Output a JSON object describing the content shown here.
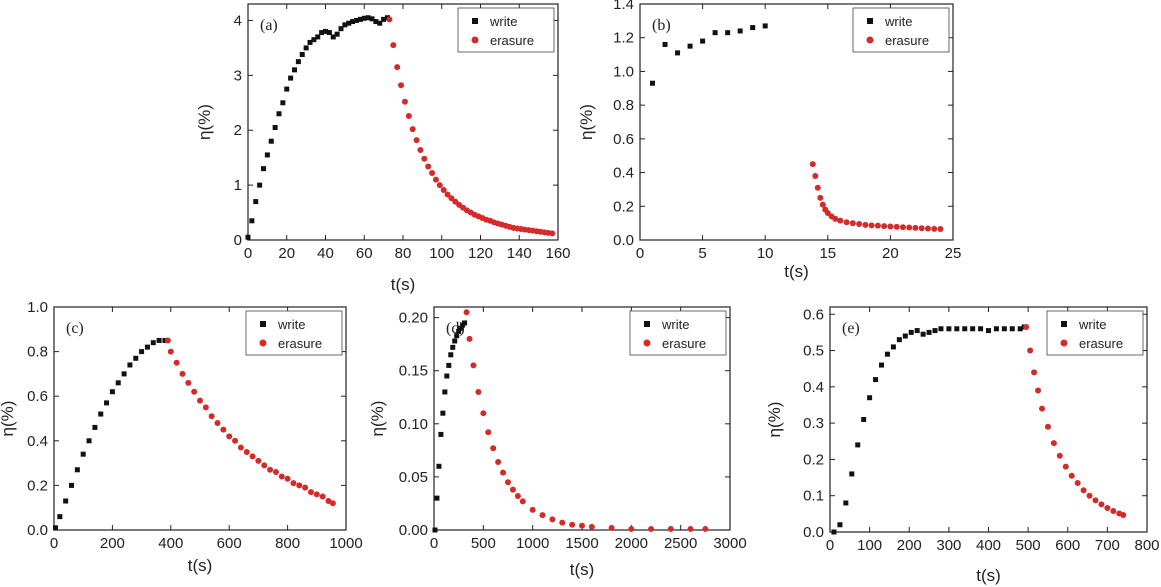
{
  "colors": {
    "write": "#111111",
    "erasure": "#d42a2a",
    "axis": "#222222"
  },
  "chart_data": [
    {
      "type": "scatter",
      "panel": "(a)",
      "xlabel": "t(s)",
      "ylabel": "η(%)",
      "xlim": [
        0,
        160
      ],
      "ylim": [
        0,
        4.3
      ],
      "xticks": [
        0,
        20,
        40,
        60,
        80,
        100,
        120,
        140,
        160
      ],
      "yticks": [
        0,
        1,
        2,
        3,
        4
      ],
      "legend": {
        "position": "top-right",
        "entries": [
          "write",
          "erasure"
        ]
      },
      "series": [
        {
          "name": "write",
          "marker": "square",
          "x": [
            0,
            2,
            4,
            6,
            8,
            10,
            12,
            14,
            16,
            18,
            20,
            22,
            24,
            26,
            28,
            30,
            32,
            34,
            36,
            38,
            40,
            42,
            44,
            46,
            48,
            50,
            52,
            54,
            56,
            58,
            60,
            62,
            64,
            66,
            68,
            70,
            72
          ],
          "y": [
            0.05,
            0.35,
            0.7,
            1.0,
            1.3,
            1.55,
            1.8,
            2.05,
            2.3,
            2.5,
            2.75,
            2.95,
            3.1,
            3.25,
            3.38,
            3.5,
            3.6,
            3.65,
            3.7,
            3.78,
            3.8,
            3.78,
            3.7,
            3.75,
            3.85,
            3.92,
            3.95,
            3.98,
            4.0,
            4.02,
            4.04,
            4.05,
            4.03,
            3.98,
            3.95,
            4.02,
            4.05
          ]
        },
        {
          "name": "erasure",
          "marker": "circle",
          "x": [
            73,
            75,
            77,
            79,
            81,
            83,
            85,
            87,
            89,
            91,
            93,
            95,
            97,
            99,
            101,
            103,
            105,
            107,
            109,
            111,
            113,
            115,
            117,
            119,
            121,
            123,
            125,
            127,
            129,
            131,
            133,
            135,
            137,
            139,
            141,
            143,
            145,
            147,
            149,
            151,
            153,
            155,
            157
          ],
          "y": [
            4.02,
            3.55,
            3.15,
            2.82,
            2.52,
            2.26,
            2.02,
            1.82,
            1.64,
            1.48,
            1.34,
            1.22,
            1.1,
            1.0,
            0.91,
            0.83,
            0.76,
            0.7,
            0.64,
            0.59,
            0.54,
            0.5,
            0.46,
            0.43,
            0.4,
            0.37,
            0.35,
            0.32,
            0.3,
            0.28,
            0.26,
            0.24,
            0.22,
            0.21,
            0.2,
            0.19,
            0.18,
            0.17,
            0.16,
            0.15,
            0.14,
            0.13,
            0.12
          ]
        }
      ]
    },
    {
      "type": "scatter",
      "panel": "(b)",
      "xlabel": "t(s)",
      "ylabel": "η(%)",
      "xlim": [
        0,
        25
      ],
      "ylim": [
        0,
        1.4
      ],
      "xticks": [
        0,
        5,
        10,
        15,
        20,
        25
      ],
      "yticks": [
        0.0,
        0.2,
        0.4,
        0.6,
        0.8,
        1.0,
        1.2,
        1.4
      ],
      "legend": {
        "position": "top-right",
        "entries": [
          "write",
          "erasure"
        ]
      },
      "series": [
        {
          "name": "write",
          "marker": "square",
          "x": [
            1,
            2,
            3,
            4,
            5,
            6,
            7,
            8,
            9,
            10
          ],
          "y": [
            0.93,
            1.16,
            1.11,
            1.15,
            1.18,
            1.23,
            1.23,
            1.24,
            1.26,
            1.27
          ]
        },
        {
          "name": "erasure",
          "marker": "circle",
          "x": [
            13.8,
            14.0,
            14.2,
            14.4,
            14.6,
            14.8,
            15.0,
            15.3,
            15.6,
            16.0,
            16.5,
            17.0,
            17.5,
            18.0,
            18.5,
            19.0,
            19.5,
            20.0,
            20.5,
            21.0,
            21.5,
            22.0,
            22.5,
            23.0,
            23.5,
            24.0
          ],
          "y": [
            0.45,
            0.38,
            0.31,
            0.25,
            0.21,
            0.18,
            0.16,
            0.14,
            0.125,
            0.115,
            0.105,
            0.1,
            0.095,
            0.09,
            0.087,
            0.085,
            0.082,
            0.08,
            0.078,
            0.076,
            0.074,
            0.072,
            0.07,
            0.068,
            0.066,
            0.065
          ]
        }
      ]
    },
    {
      "type": "scatter",
      "panel": "(c)",
      "xlabel": "t(s)",
      "ylabel": "η(%)",
      "xlim": [
        0,
        1000
      ],
      "ylim": [
        0,
        1.0
      ],
      "xticks": [
        0,
        200,
        400,
        600,
        800,
        1000
      ],
      "yticks": [
        0.0,
        0.2,
        0.4,
        0.6,
        0.8,
        1.0
      ],
      "legend": {
        "position": "top-right",
        "entries": [
          "write",
          "erasure"
        ]
      },
      "series": [
        {
          "name": "write",
          "marker": "square",
          "x": [
            5,
            20,
            40,
            60,
            80,
            100,
            120,
            140,
            160,
            180,
            200,
            220,
            240,
            260,
            280,
            300,
            320,
            340,
            360,
            380
          ],
          "y": [
            0.01,
            0.06,
            0.13,
            0.2,
            0.27,
            0.34,
            0.4,
            0.46,
            0.52,
            0.57,
            0.62,
            0.66,
            0.7,
            0.74,
            0.77,
            0.8,
            0.82,
            0.84,
            0.85,
            0.85
          ]
        },
        {
          "name": "erasure",
          "marker": "circle",
          "x": [
            390,
            400,
            420,
            440,
            460,
            480,
            500,
            520,
            540,
            560,
            580,
            600,
            620,
            640,
            660,
            680,
            700,
            720,
            740,
            760,
            780,
            800,
            820,
            840,
            860,
            880,
            900,
            920,
            940,
            955
          ],
          "y": [
            0.85,
            0.8,
            0.75,
            0.7,
            0.66,
            0.62,
            0.58,
            0.55,
            0.51,
            0.48,
            0.45,
            0.42,
            0.4,
            0.37,
            0.35,
            0.33,
            0.31,
            0.29,
            0.27,
            0.26,
            0.24,
            0.23,
            0.21,
            0.2,
            0.19,
            0.17,
            0.16,
            0.15,
            0.13,
            0.12
          ]
        }
      ]
    },
    {
      "type": "scatter",
      "panel": "(d)",
      "xlabel": "t(s)",
      "ylabel": "η(%)",
      "xlim": [
        0,
        3000
      ],
      "ylim": [
        0,
        0.21
      ],
      "xticks": [
        0,
        500,
        1000,
        1500,
        2000,
        2500,
        3000
      ],
      "yticks": [
        0.0,
        0.05,
        0.1,
        0.15,
        0.2
      ],
      "ytick_labels": [
        "0.00",
        "0.05",
        "0.10",
        "0.15",
        "0.20"
      ],
      "legend": {
        "position": "top-right",
        "entries": [
          "write",
          "erasure"
        ]
      },
      "series": [
        {
          "name": "write",
          "marker": "square",
          "x": [
            10,
            30,
            50,
            70,
            90,
            110,
            130,
            150,
            170,
            190,
            210,
            230,
            250,
            270,
            290,
            310
          ],
          "y": [
            0.0,
            0.03,
            0.06,
            0.09,
            0.11,
            0.13,
            0.145,
            0.155,
            0.165,
            0.172,
            0.178,
            0.183,
            0.187,
            0.19,
            0.193,
            0.195
          ]
        },
        {
          "name": "erasure",
          "marker": "circle",
          "x": [
            330,
            360,
            400,
            450,
            500,
            550,
            600,
            650,
            700,
            750,
            800,
            850,
            900,
            1000,
            1100,
            1200,
            1300,
            1400,
            1500,
            1600,
            1800,
            2000,
            2200,
            2400,
            2600,
            2750
          ],
          "y": [
            0.205,
            0.18,
            0.155,
            0.13,
            0.11,
            0.092,
            0.077,
            0.064,
            0.054,
            0.045,
            0.038,
            0.032,
            0.027,
            0.019,
            0.014,
            0.01,
            0.007,
            0.005,
            0.004,
            0.003,
            0.002,
            0.001,
            0.001,
            0.001,
            0.001,
            0.001
          ]
        }
      ]
    },
    {
      "type": "scatter",
      "panel": "(e)",
      "xlabel": "t(s)",
      "ylabel": "η(%)",
      "xlim": [
        0,
        800
      ],
      "ylim": [
        0,
        0.62
      ],
      "xticks": [
        0,
        100,
        200,
        300,
        400,
        500,
        600,
        700,
        800
      ],
      "yticks": [
        0.0,
        0.1,
        0.2,
        0.3,
        0.4,
        0.5,
        0.6
      ],
      "legend": {
        "position": "top-right",
        "entries": [
          "write",
          "erasure"
        ]
      },
      "series": [
        {
          "name": "write",
          "marker": "square",
          "x": [
            10,
            25,
            40,
            55,
            70,
            85,
            100,
            115,
            130,
            145,
            160,
            175,
            190,
            205,
            220,
            235,
            250,
            265,
            280,
            300,
            320,
            340,
            360,
            380,
            400,
            420,
            440,
            460,
            480,
            490
          ],
          "y": [
            0.0,
            0.02,
            0.08,
            0.16,
            0.24,
            0.31,
            0.37,
            0.42,
            0.46,
            0.49,
            0.51,
            0.53,
            0.54,
            0.55,
            0.555,
            0.545,
            0.55,
            0.555,
            0.56,
            0.56,
            0.56,
            0.56,
            0.56,
            0.56,
            0.555,
            0.56,
            0.56,
            0.56,
            0.56,
            0.565
          ]
        },
        {
          "name": "erasure",
          "marker": "circle",
          "x": [
            495,
            505,
            515,
            525,
            535,
            550,
            565,
            580,
            595,
            610,
            625,
            640,
            655,
            670,
            685,
            700,
            715,
            730,
            740
          ],
          "y": [
            0.565,
            0.5,
            0.44,
            0.39,
            0.34,
            0.29,
            0.245,
            0.21,
            0.18,
            0.155,
            0.135,
            0.115,
            0.1,
            0.087,
            0.076,
            0.066,
            0.058,
            0.051,
            0.047
          ]
        }
      ]
    }
  ]
}
